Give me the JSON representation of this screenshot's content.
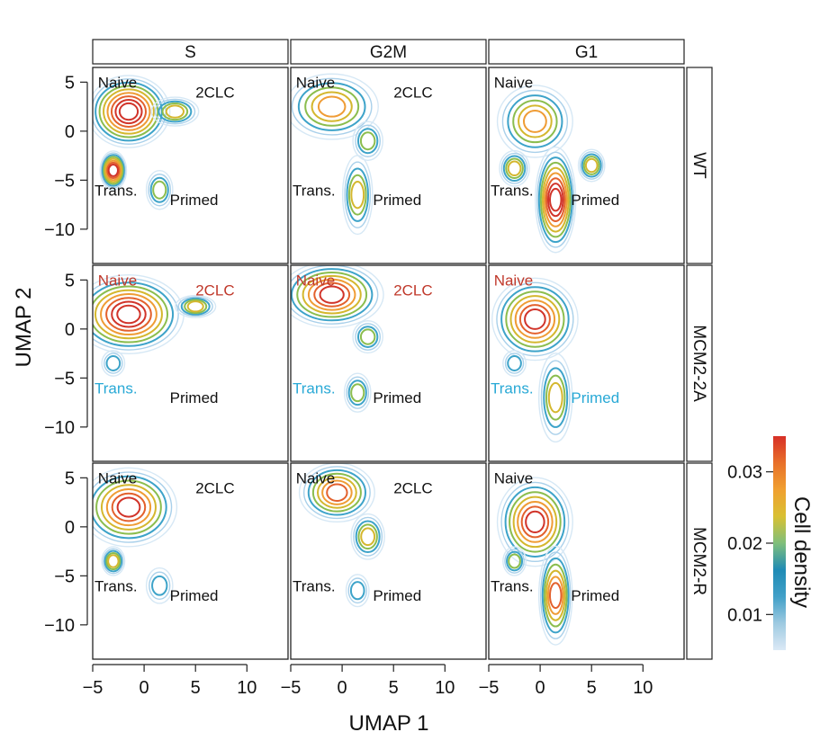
{
  "chart_data": {
    "type": "contour",
    "description_free": true,
    "xlabel": "UMAP 1",
    "ylabel": "UMAP 2",
    "x_ticks": [
      -5,
      0,
      5,
      10
    ],
    "y_ticks": [
      5,
      0,
      -5,
      -10
    ],
    "xlim": [
      -5,
      14
    ],
    "ylim": [
      -13.5,
      6.5
    ],
    "columns": [
      "S",
      "G2M",
      "G1"
    ],
    "rows": [
      "WT",
      "MCM2-2A",
      "MCM2-R"
    ],
    "colorbar": {
      "title": "Cell density",
      "ticks": [
        0.01,
        0.02,
        0.03
      ],
      "range": [
        0.005,
        0.035
      ],
      "colors": [
        "#dbe9f6",
        "#9ecae1",
        "#41a0c8",
        "#1f8bb5",
        "#7fbf7b",
        "#d9c032",
        "#f0a030",
        "#e8702a",
        "#d73027"
      ]
    },
    "level_colors": [
      "#d6e8f5",
      "#a9d0ea",
      "#3da3c9",
      "#8bbd4e",
      "#d4b72e",
      "#ef9c35",
      "#e3612d",
      "#d1342a"
    ],
    "label_colors": {
      "default": "#111111",
      "red": "#c0392b",
      "blue": "#29a9d6"
    },
    "panels": [
      {
        "row": "WT",
        "col": "S",
        "labels": [
          {
            "text": "Naive",
            "x": -4.5,
            "y": 5,
            "color": "default"
          },
          {
            "text": "2CLC",
            "x": 5,
            "y": 4,
            "color": "default"
          },
          {
            "text": "Trans.",
            "x": -5,
            "y": -6,
            "color": "default"
          },
          {
            "text": "Primed",
            "x": 2.5,
            "y": -7,
            "color": "default"
          }
        ],
        "peaks": [
          {
            "x": -1.5,
            "y": 2,
            "sx": 2.2,
            "sy": 2.0,
            "level": 7
          },
          {
            "x": -3,
            "y": -4,
            "sx": 0.6,
            "sy": 1.0,
            "level": 6
          },
          {
            "x": 3,
            "y": 2,
            "sx": 1.2,
            "sy": 0.7,
            "level": 3
          },
          {
            "x": 1.5,
            "y": -6,
            "sx": 0.6,
            "sy": 1.0,
            "level": 2
          }
        ]
      },
      {
        "row": "WT",
        "col": "G2M",
        "labels": [
          {
            "text": "Naive",
            "x": -4.5,
            "y": 5,
            "color": "default"
          },
          {
            "text": "2CLC",
            "x": 5,
            "y": 4,
            "color": "default"
          },
          {
            "text": "Trans.",
            "x": -5,
            "y": -6,
            "color": "default"
          },
          {
            "text": "Primed",
            "x": 3,
            "y": -7,
            "color": "default"
          }
        ],
        "peaks": [
          {
            "x": -1,
            "y": 2.5,
            "sx": 2.5,
            "sy": 1.8,
            "level": 4
          },
          {
            "x": 2.5,
            "y": -1,
            "sx": 0.7,
            "sy": 1.0,
            "level": 2
          },
          {
            "x": 1.5,
            "y": -6.5,
            "sx": 0.7,
            "sy": 2.2,
            "level": 3
          }
        ]
      },
      {
        "row": "WT",
        "col": "G1",
        "labels": [
          {
            "text": "Naive",
            "x": -4.5,
            "y": 5,
            "color": "default"
          },
          {
            "text": "Trans.",
            "x": -5,
            "y": -6,
            "color": "default"
          },
          {
            "text": "Primed",
            "x": 3,
            "y": -7,
            "color": "default"
          }
        ],
        "peaks": [
          {
            "x": -0.5,
            "y": 1,
            "sx": 2.0,
            "sy": 2.0,
            "level": 4
          },
          {
            "x": -2.5,
            "y": -3.8,
            "sx": 0.7,
            "sy": 0.9,
            "level": 3
          },
          {
            "x": 5,
            "y": -3.5,
            "sx": 0.6,
            "sy": 0.8,
            "level": 3
          },
          {
            "x": 1.5,
            "y": -7,
            "sx": 1.0,
            "sy": 3.0,
            "level": 7
          }
        ]
      },
      {
        "row": "MCM2-2A",
        "col": "S",
        "labels": [
          {
            "text": "Naive",
            "x": -4.5,
            "y": 5,
            "color": "red"
          },
          {
            "text": "2CLC",
            "x": 5,
            "y": 4,
            "color": "red"
          },
          {
            "text": "Trans.",
            "x": -5,
            "y": -6,
            "color": "blue"
          },
          {
            "text": "Primed",
            "x": 2.5,
            "y": -7,
            "color": "default"
          }
        ],
        "peaks": [
          {
            "x": -1.5,
            "y": 1.5,
            "sx": 3.0,
            "sy": 2.2,
            "level": 7
          },
          {
            "x": 5,
            "y": 2.3,
            "sx": 1.0,
            "sy": 0.5,
            "level": 3
          },
          {
            "x": -3,
            "y": -3.5,
            "sx": 0.5,
            "sy": 0.6,
            "level": 1
          }
        ]
      },
      {
        "row": "MCM2-2A",
        "col": "G2M",
        "labels": [
          {
            "text": "Naive",
            "x": -4.5,
            "y": 5,
            "color": "red"
          },
          {
            "text": "2CLC",
            "x": 5,
            "y": 4,
            "color": "red"
          },
          {
            "text": "Trans.",
            "x": -5,
            "y": -6,
            "color": "blue"
          },
          {
            "text": "Primed",
            "x": 3,
            "y": -7,
            "color": "default"
          }
        ],
        "peaks": [
          {
            "x": -1,
            "y": 3.5,
            "sx": 2.8,
            "sy": 1.8,
            "level": 6
          },
          {
            "x": 2.5,
            "y": -0.8,
            "sx": 0.7,
            "sy": 0.8,
            "level": 2
          },
          {
            "x": 1.5,
            "y": -6.5,
            "sx": 0.6,
            "sy": 1.0,
            "level": 2
          }
        ]
      },
      {
        "row": "MCM2-2A",
        "col": "G1",
        "labels": [
          {
            "text": "Naive",
            "x": -4.5,
            "y": 5,
            "color": "red"
          },
          {
            "text": "Trans.",
            "x": -5,
            "y": -6,
            "color": "blue"
          },
          {
            "text": "Primed",
            "x": 3,
            "y": -7,
            "color": "blue"
          }
        ],
        "peaks": [
          {
            "x": -0.5,
            "y": 1,
            "sx": 2.3,
            "sy": 2.3,
            "level": 6
          },
          {
            "x": -2.5,
            "y": -3.5,
            "sx": 0.5,
            "sy": 0.6,
            "level": 1
          },
          {
            "x": 1.5,
            "y": -7,
            "sx": 0.8,
            "sy": 2.5,
            "level": 3
          }
        ]
      },
      {
        "row": "MCM2-R",
        "col": "S",
        "labels": [
          {
            "text": "Naive",
            "x": -4.5,
            "y": 5,
            "color": "default"
          },
          {
            "text": "2CLC",
            "x": 5,
            "y": 4,
            "color": "default"
          },
          {
            "text": "Trans.",
            "x": -5,
            "y": -6,
            "color": "default"
          },
          {
            "text": "Primed",
            "x": 2.5,
            "y": -7,
            "color": "default"
          }
        ],
        "peaks": [
          {
            "x": -1.5,
            "y": 2,
            "sx": 2.6,
            "sy": 2.2,
            "level": 6
          },
          {
            "x": -3,
            "y": -3.5,
            "sx": 0.5,
            "sy": 0.7,
            "level": 3
          },
          {
            "x": 1.5,
            "y": -6,
            "sx": 0.6,
            "sy": 0.9,
            "level": 1
          }
        ]
      },
      {
        "row": "MCM2-R",
        "col": "G2M",
        "labels": [
          {
            "text": "Naive",
            "x": -4.5,
            "y": 5,
            "color": "default"
          },
          {
            "text": "2CLC",
            "x": 5,
            "y": 4,
            "color": "default"
          },
          {
            "text": "Trans.",
            "x": -5,
            "y": -6,
            "color": "default"
          },
          {
            "text": "Primed",
            "x": 3,
            "y": -7,
            "color": "default"
          }
        ],
        "peaks": [
          {
            "x": -0.5,
            "y": 3.5,
            "sx": 2.0,
            "sy": 1.6,
            "level": 5
          },
          {
            "x": 2.5,
            "y": -1,
            "sx": 0.8,
            "sy": 1.2,
            "level": 3
          },
          {
            "x": 1.5,
            "y": -6.5,
            "sx": 0.5,
            "sy": 0.8,
            "level": 1
          }
        ]
      },
      {
        "row": "MCM2-R",
        "col": "G1",
        "labels": [
          {
            "text": "Naive",
            "x": -4.5,
            "y": 5,
            "color": "default"
          },
          {
            "text": "Trans.",
            "x": -5,
            "y": -6,
            "color": "default"
          },
          {
            "text": "Primed",
            "x": 3,
            "y": -7,
            "color": "default"
          }
        ],
        "peaks": [
          {
            "x": -0.5,
            "y": 0.5,
            "sx": 2.0,
            "sy": 2.5,
            "level": 6
          },
          {
            "x": -2.5,
            "y": -3.5,
            "sx": 0.5,
            "sy": 0.7,
            "level": 2
          },
          {
            "x": 1.5,
            "y": -7,
            "sx": 0.8,
            "sy": 2.8,
            "level": 5
          }
        ]
      }
    ]
  }
}
